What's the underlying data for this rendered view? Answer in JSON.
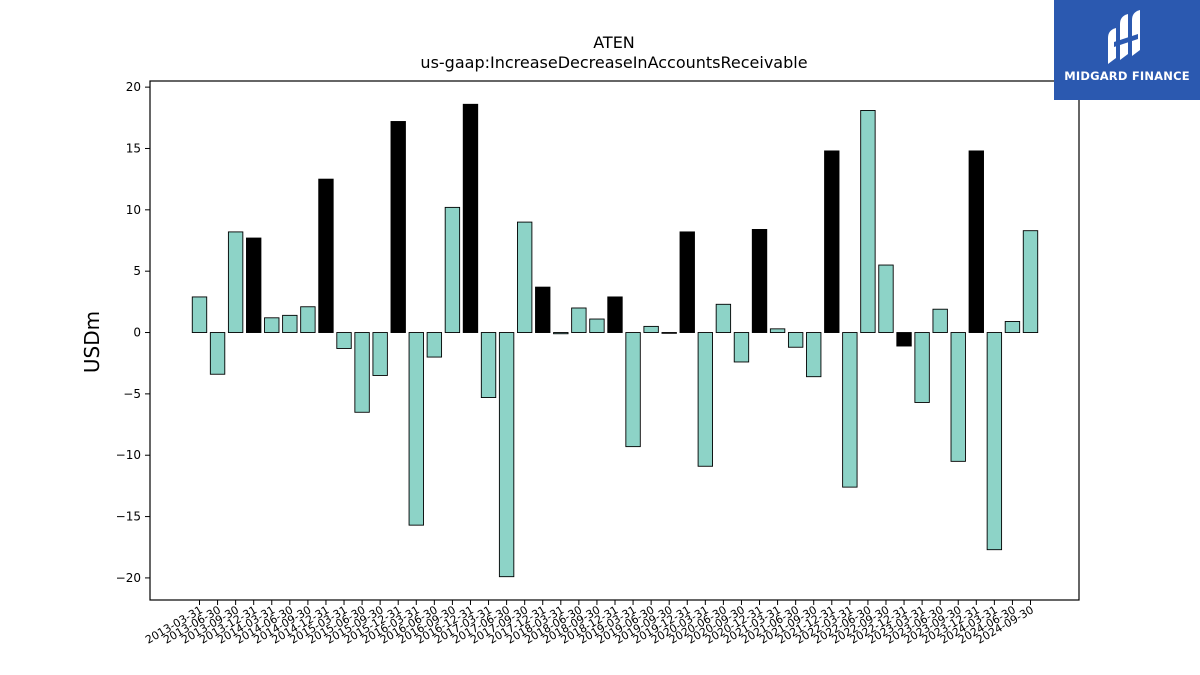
{
  "chart_data": {
    "type": "bar",
    "title": "ATEN",
    "subtitle": "us-gaap:IncreaseDecreaseInAccountsReceivable",
    "xlabel": "",
    "ylabel": "USDm",
    "ylim": [
      -21.8,
      20.5
    ],
    "yticks": [
      -20,
      -15,
      -10,
      -5,
      0,
      5,
      10,
      15,
      20
    ],
    "ytick_labels": [
      "−20",
      "−15",
      "−10",
      "−5",
      "0",
      "5",
      "10",
      "15",
      "20"
    ],
    "grid": false,
    "colors": {
      "quarter": "#8dd3c7",
      "annual": "#000000",
      "edge": "#000000"
    },
    "categories": [
      "2013-03-31",
      "2013-06-30",
      "2013-09-30",
      "2013-12-31",
      "2014-03-31",
      "2014-06-30",
      "2014-09-30",
      "2014-12-31",
      "2015-03-31",
      "2015-06-30",
      "2015-09-30",
      "2015-12-31",
      "2016-03-31",
      "2016-06-30",
      "2016-09-30",
      "2016-12-31",
      "2017-03-31",
      "2017-06-30",
      "2017-09-30",
      "2017-12-31",
      "2018-03-31",
      "2018-06-30",
      "2018-09-30",
      "2018-12-31",
      "2019-03-31",
      "2019-06-30",
      "2019-09-30",
      "2019-12-31",
      "2020-03-31",
      "2020-06-30",
      "2020-09-30",
      "2020-12-31",
      "2021-03-31",
      "2021-06-30",
      "2021-09-30",
      "2021-12-31",
      "2022-03-31",
      "2022-06-30",
      "2022-09-30",
      "2022-12-31",
      "2023-03-31",
      "2023-06-30",
      "2023-09-30",
      "2023-12-31",
      "2024-03-31",
      "2024-06-30",
      "2024-09-30"
    ],
    "values": [
      2.9,
      -3.4,
      8.2,
      7.7,
      1.2,
      1.4,
      2.1,
      12.5,
      -1.3,
      -6.5,
      -3.5,
      17.2,
      -15.7,
      -2.0,
      10.2,
      18.6,
      -5.3,
      -19.9,
      9.0,
      3.7,
      -0.1,
      2.0,
      1.1,
      2.9,
      -9.3,
      0.5,
      -0.05,
      8.2,
      -10.9,
      2.3,
      -2.4,
      8.4,
      0.3,
      -1.2,
      -3.6,
      14.8,
      -12.6,
      18.1,
      5.5,
      -1.1,
      -5.7,
      1.9,
      -10.5,
      14.8,
      -17.7,
      0.9,
      8.3
    ],
    "annual_flags": [
      0,
      0,
      0,
      1,
      0,
      0,
      0,
      1,
      0,
      0,
      0,
      1,
      0,
      0,
      0,
      1,
      0,
      0,
      0,
      1,
      0,
      0,
      0,
      1,
      0,
      0,
      0,
      1,
      0,
      0,
      0,
      1,
      0,
      0,
      0,
      1,
      0,
      0,
      0,
      1,
      0,
      0,
      0,
      1,
      0,
      0,
      0
    ]
  },
  "logo": {
    "text": "MIDGARD FINANCE"
  }
}
